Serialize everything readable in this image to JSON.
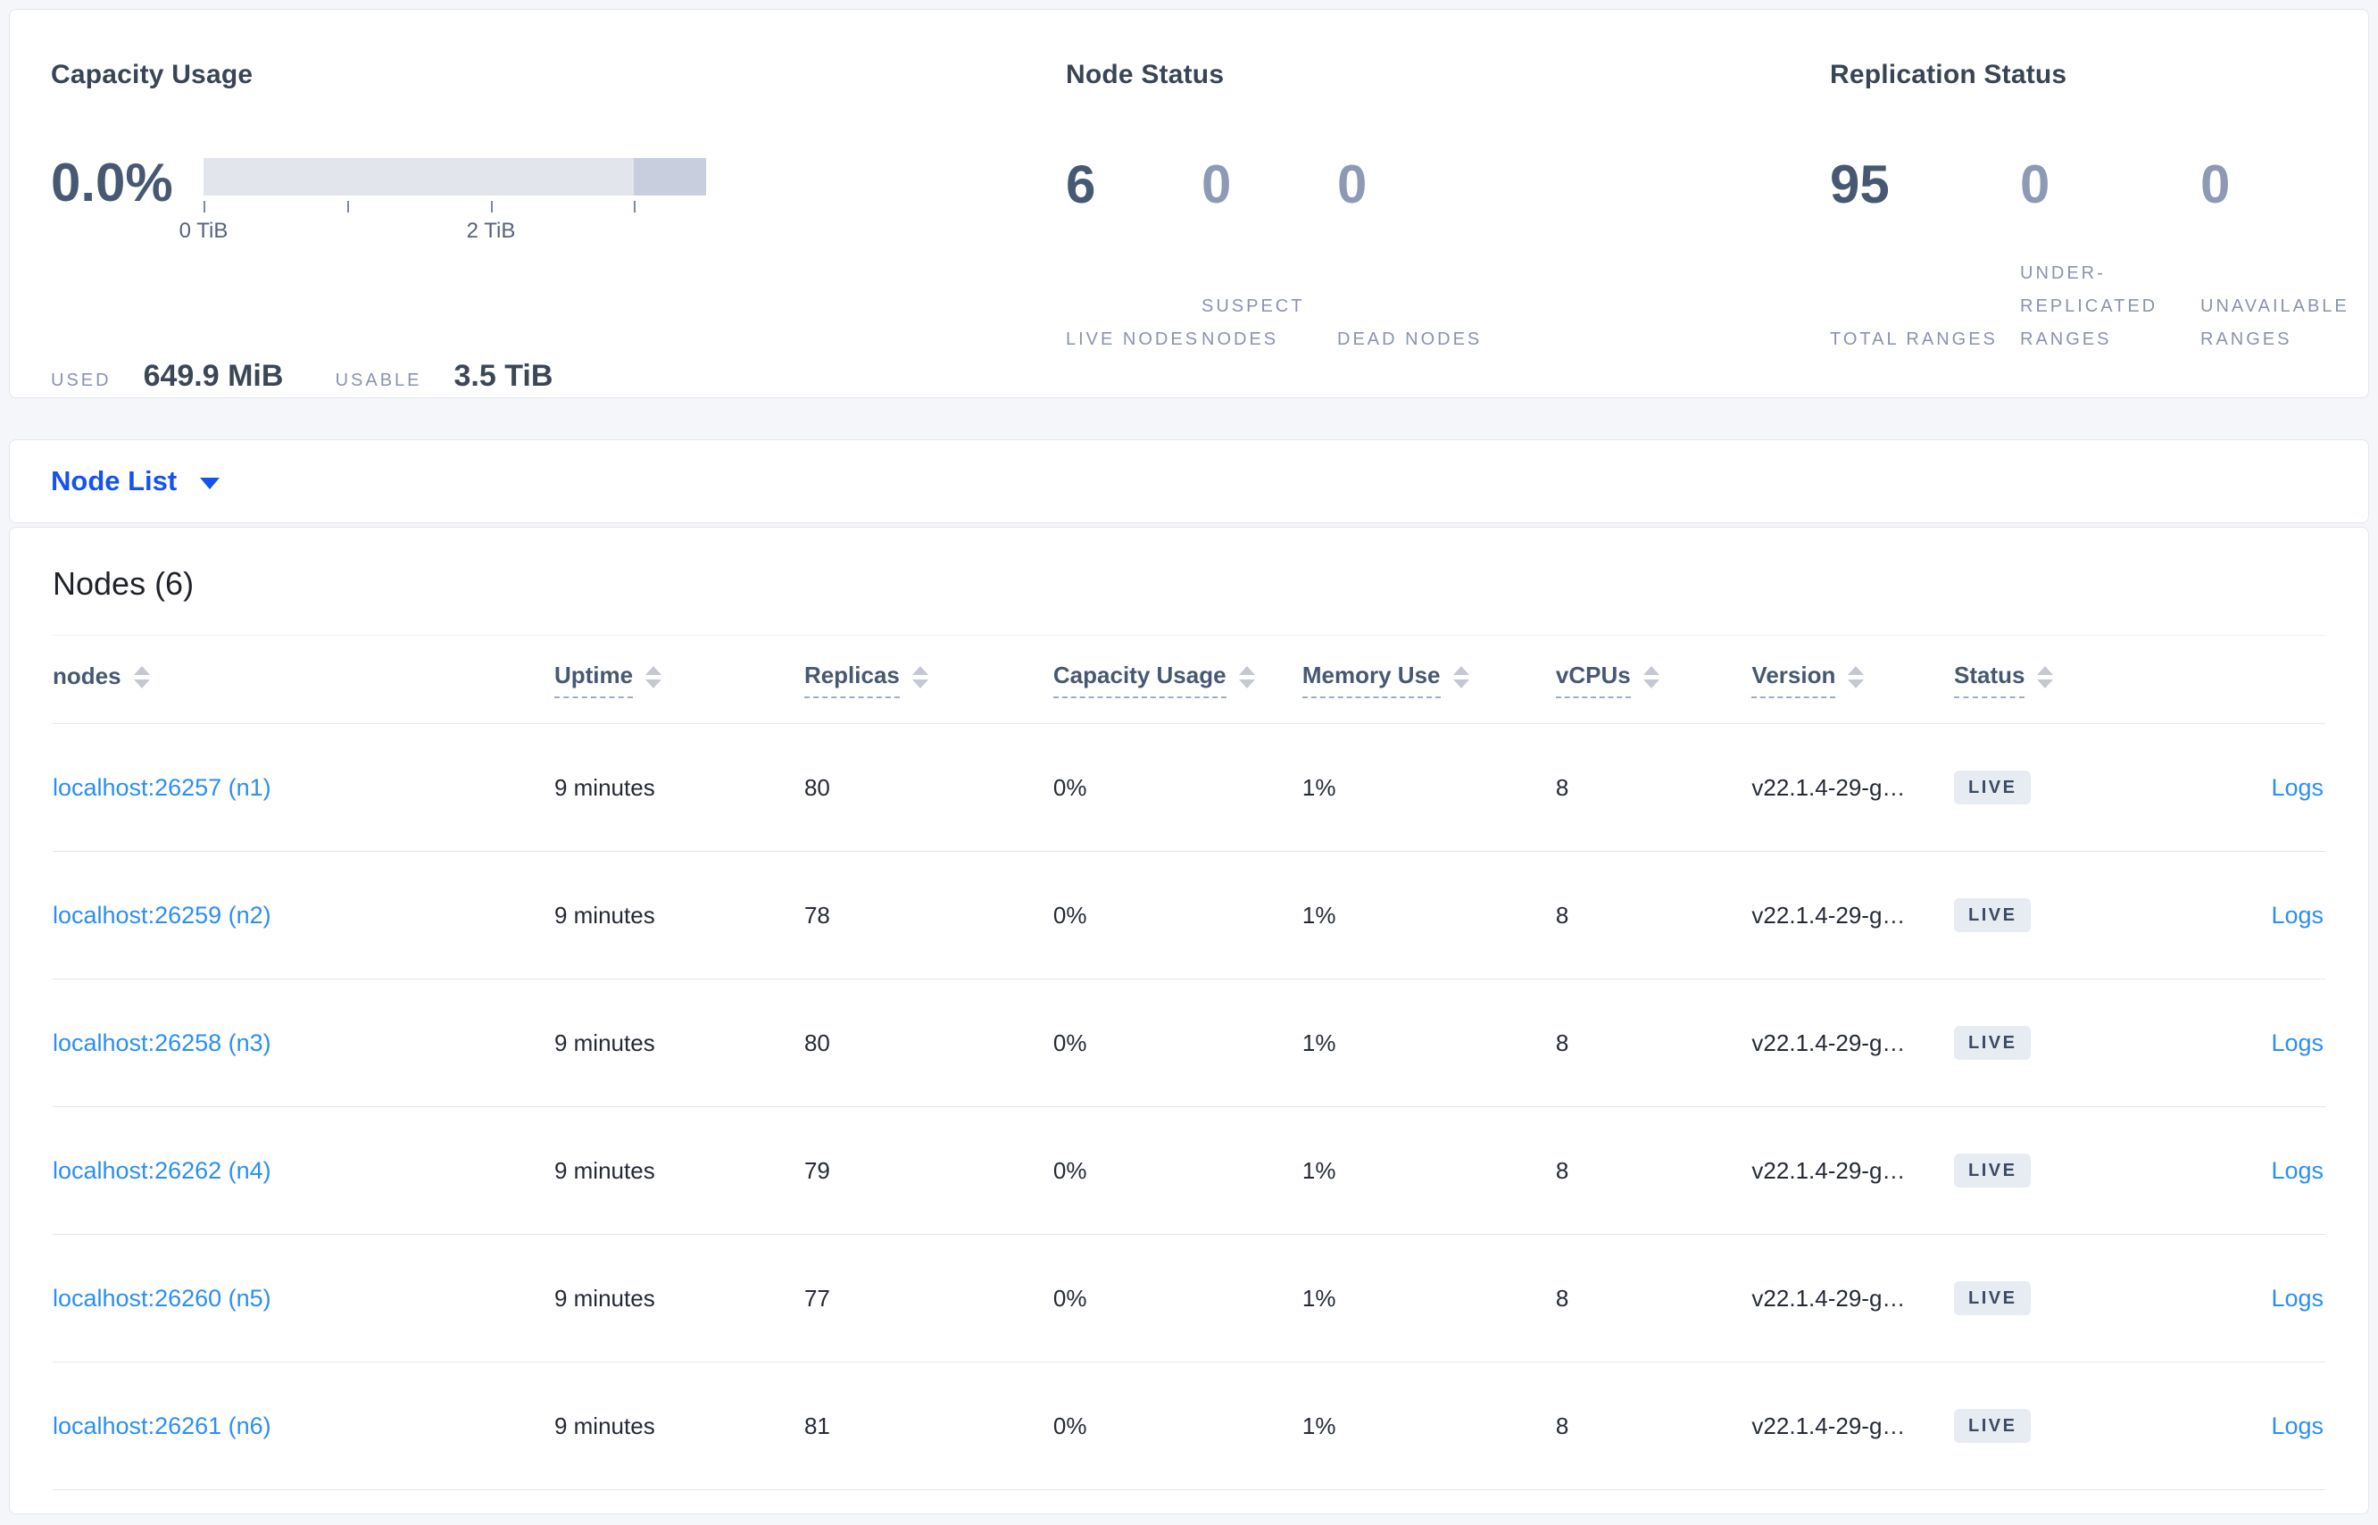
{
  "summary": {
    "capacity": {
      "title": "Capacity Usage",
      "percent": "0.0%",
      "used_label": "USED",
      "used_value": "649.9 MiB",
      "usable_label": "USABLE",
      "usable_value": "3.5 TiB",
      "axis_ticks": [
        {
          "pos": 0.0,
          "label": "0 TiB"
        },
        {
          "pos": 0.286,
          "label": ""
        },
        {
          "pos": 0.572,
          "label": "2 TiB"
        },
        {
          "pos": 0.856,
          "label": ""
        }
      ],
      "bar_total": "3.5 TiB",
      "bar_light_color": "#e2e5ec",
      "bar_dark_color": "#c9cede"
    },
    "node_status": {
      "title": "Node Status",
      "stats": [
        {
          "value": "6",
          "label": "LIVE NODES"
        },
        {
          "value": "0",
          "label": "SUSPECT NODES"
        },
        {
          "value": "0",
          "label": "DEAD NODES"
        }
      ]
    },
    "replication_status": {
      "title": "Replication Status",
      "stats": [
        {
          "value": "95",
          "label": "TOTAL RANGES"
        },
        {
          "value": "0",
          "label": "UNDER-REPLICATED RANGES"
        },
        {
          "value": "0",
          "label": "UNAVAILABLE RANGES"
        }
      ]
    }
  },
  "view_selector": {
    "label": "Node List"
  },
  "table": {
    "title": "Nodes (6)",
    "headers": [
      {
        "label": "nodes",
        "sortable": true,
        "dashed": false
      },
      {
        "label": "Uptime",
        "sortable": true,
        "dashed": true
      },
      {
        "label": "Replicas",
        "sortable": true,
        "dashed": true
      },
      {
        "label": "Capacity Usage",
        "sortable": true,
        "dashed": true
      },
      {
        "label": "Memory Use",
        "sortable": true,
        "dashed": true
      },
      {
        "label": "vCPUs",
        "sortable": true,
        "dashed": true
      },
      {
        "label": "Version",
        "sortable": true,
        "dashed": true
      },
      {
        "label": "Status",
        "sortable": true,
        "dashed": true
      },
      {
        "label": "",
        "sortable": false,
        "dashed": false
      }
    ],
    "rows": [
      {
        "address": "localhost:26257 (n1)",
        "uptime": "9 minutes",
        "replicas": "80",
        "capacity": "0%",
        "memory": "1%",
        "vcpus": "8",
        "version": "v22.1.4-29-g…",
        "status": "LIVE",
        "logs": "Logs"
      },
      {
        "address": "localhost:26259 (n2)",
        "uptime": "9 minutes",
        "replicas": "78",
        "capacity": "0%",
        "memory": "1%",
        "vcpus": "8",
        "version": "v22.1.4-29-g…",
        "status": "LIVE",
        "logs": "Logs"
      },
      {
        "address": "localhost:26258 (n3)",
        "uptime": "9 minutes",
        "replicas": "80",
        "capacity": "0%",
        "memory": "1%",
        "vcpus": "8",
        "version": "v22.1.4-29-g…",
        "status": "LIVE",
        "logs": "Logs"
      },
      {
        "address": "localhost:26262 (n4)",
        "uptime": "9 minutes",
        "replicas": "79",
        "capacity": "0%",
        "memory": "1%",
        "vcpus": "8",
        "version": "v22.1.4-29-g…",
        "status": "LIVE",
        "logs": "Logs"
      },
      {
        "address": "localhost:26260 (n5)",
        "uptime": "9 minutes",
        "replicas": "77",
        "capacity": "0%",
        "memory": "1%",
        "vcpus": "8",
        "version": "v22.1.4-29-g…",
        "status": "LIVE",
        "logs": "Logs"
      },
      {
        "address": "localhost:26261 (n6)",
        "uptime": "9 minutes",
        "replicas": "81",
        "capacity": "0%",
        "memory": "1%",
        "vcpus": "8",
        "version": "v22.1.4-29-g…",
        "status": "LIVE",
        "logs": "Logs"
      }
    ]
  },
  "colors": {
    "link_blue": "#2b8ef5",
    "selector_blue": "#1453f0",
    "strong_number": "#475872",
    "muted_number": "#8e9ab5",
    "caps_label": "#8a93ad",
    "badge_bg": "#e7ebf2",
    "badge_text": "#394a63",
    "page_bg": "#f4f6fa"
  }
}
